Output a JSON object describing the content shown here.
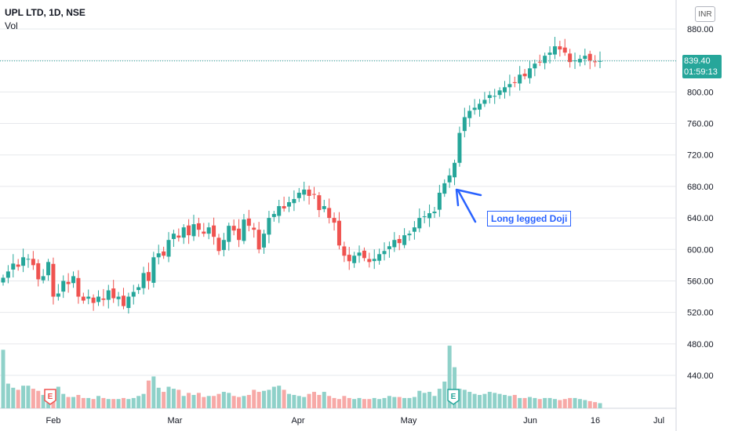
{
  "header": {
    "symbol_line": "UPL LTD, 1D, NSE",
    "indicator": "Vol"
  },
  "currency_badge": "INR",
  "last_price": {
    "price": "839.40",
    "countdown": "01:59:13",
    "value": 839.4
  },
  "annotation": {
    "text": "Long legged Doji"
  },
  "colors": {
    "up": "#26a69a",
    "down": "#ef5350",
    "up_vol": "#8fd1c9",
    "down_vol": "#f7a9a7",
    "annotation": "#2962ff",
    "grid": "#e6e8ec",
    "axis_text": "#131722"
  },
  "chart_data": {
    "type": "candlestick",
    "title": "",
    "ylim": [
      400,
      905
    ],
    "y_ticks": [
      440,
      480,
      520,
      560,
      600,
      640,
      680,
      720,
      760,
      800,
      840,
      880
    ],
    "y_tick_labels": [
      "440.00",
      "480.00",
      "520.00",
      "560.00",
      "600.00",
      "640.00",
      "680.00",
      "720.00",
      "760.00",
      "800.00",
      "840.00",
      "880.00"
    ],
    "x_labels": [
      "Feb",
      "Mar",
      "Apr",
      "May",
      "Jun",
      "16",
      "Jul"
    ],
    "earnings_markers": [
      {
        "label": "E",
        "near": "Feb"
      },
      {
        "label": "E",
        "near": "May"
      }
    ],
    "series": [
      {
        "name": "Vol",
        "type": "bar"
      }
    ],
    "closes": [
      564,
      572,
      582,
      578,
      590,
      588,
      580,
      562,
      566,
      584,
      540,
      544,
      560,
      556,
      566,
      540,
      535,
      540,
      532,
      540,
      536,
      548,
      538,
      540,
      528,
      540,
      546,
      552,
      570,
      560,
      590,
      595,
      592,
      612,
      620,
      615,
      628,
      618,
      632,
      625,
      620,
      628,
      616,
      598,
      612,
      630,
      624,
      612,
      638,
      630,
      625,
      600,
      620,
      640,
      645,
      655,
      652,
      660,
      664,
      672,
      676,
      668,
      670,
      650,
      655,
      640,
      634,
      605,
      592,
      585,
      592,
      596,
      589,
      584,
      588,
      594,
      598,
      604,
      612,
      608,
      618,
      620,
      628,
      640,
      642,
      646,
      648,
      672,
      684,
      694,
      710,
      748,
      768,
      776,
      780,
      785,
      790,
      796,
      795,
      802,
      806,
      810,
      812,
      822,
      820,
      830,
      836,
      838,
      846,
      850,
      858,
      854,
      850,
      838,
      840,
      842,
      846,
      840,
      838,
      839.4
    ],
    "volumes": [
      0.57,
      0.24,
      0.2,
      0.18,
      0.22,
      0.22,
      0.19,
      0.17,
      0.13,
      0.12,
      0.12,
      0.21,
      0.14,
      0.11,
      0.11,
      0.13,
      0.1,
      0.1,
      0.09,
      0.12,
      0.1,
      0.09,
      0.09,
      0.09,
      0.1,
      0.09,
      0.1,
      0.12,
      0.14,
      0.27,
      0.31,
      0.2,
      0.16,
      0.21,
      0.19,
      0.18,
      0.12,
      0.15,
      0.13,
      0.15,
      0.11,
      0.12,
      0.12,
      0.14,
      0.16,
      0.15,
      0.12,
      0.11,
      0.12,
      0.13,
      0.18,
      0.16,
      0.17,
      0.18,
      0.21,
      0.22,
      0.18,
      0.14,
      0.13,
      0.12,
      0.11,
      0.14,
      0.16,
      0.13,
      0.16,
      0.12,
      0.1,
      0.09,
      0.12,
      0.1,
      0.09,
      0.1,
      0.09,
      0.09,
      0.1,
      0.09,
      0.1,
      0.12,
      0.11,
      0.11,
      0.1,
      0.1,
      0.11,
      0.17,
      0.15,
      0.16,
      0.12,
      0.19,
      0.26,
      0.61,
      0.4,
      0.19,
      0.18,
      0.16,
      0.14,
      0.13,
      0.14,
      0.16,
      0.15,
      0.14,
      0.13,
      0.12,
      0.13,
      0.1,
      0.1,
      0.11,
      0.1,
      0.09,
      0.1,
      0.1,
      0.09,
      0.08,
      0.09,
      0.1,
      0.1,
      0.09,
      0.08,
      0.07,
      0.06,
      0.05
    ],
    "volume_axis_max": 1.0
  }
}
